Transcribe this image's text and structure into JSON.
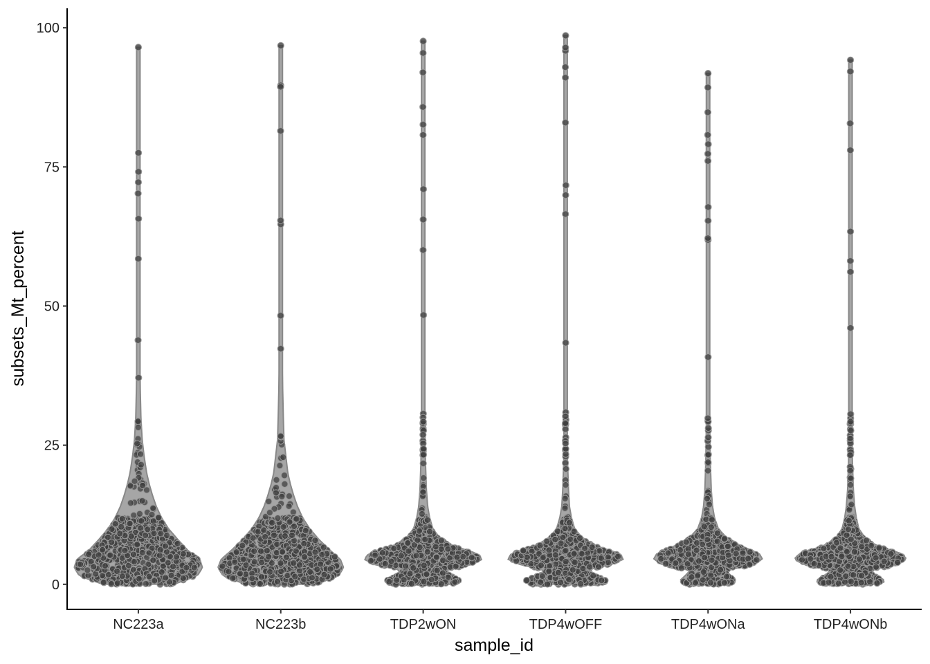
{
  "chart_data": {
    "type": "violin",
    "xlabel": "sample_id",
    "ylabel": "subsets_Mt_percent",
    "ylim": [
      -4.5,
      103.5
    ],
    "yticks": [
      0,
      25,
      50,
      75,
      100
    ],
    "grid": false,
    "legend": "none",
    "point_color": "#404040",
    "violin_fill": "#a6a6a6",
    "violin_outline": "#888888",
    "categories": [
      "NC223a",
      "NC223b",
      "TDP2wON",
      "TDP4wOFF",
      "TDP4wONa",
      "TDP4wONb"
    ],
    "series": [
      {
        "name": "NC223a",
        "max": 96.5,
        "min": 0,
        "profile": [
          [
            0,
            0.55
          ],
          [
            1.5,
            0.92
          ],
          [
            3,
            1.0
          ],
          [
            4.5,
            0.96
          ],
          [
            6,
            0.78
          ],
          [
            8,
            0.62
          ],
          [
            10,
            0.47
          ],
          [
            12,
            0.36
          ],
          [
            14,
            0.28
          ],
          [
            16,
            0.22
          ],
          [
            18,
            0.17
          ],
          [
            20,
            0.13
          ],
          [
            23,
            0.09
          ],
          [
            26,
            0.06
          ],
          [
            30,
            0.04
          ],
          [
            35,
            0.03
          ],
          [
            45,
            0.02
          ],
          [
            60,
            0.015
          ],
          [
            80,
            0.012
          ],
          [
            96.5,
            0.01
          ]
        ]
      },
      {
        "name": "NC223b",
        "max": 96.8,
        "min": 0,
        "profile": [
          [
            0,
            0.55
          ],
          [
            1.5,
            0.9
          ],
          [
            3,
            0.98
          ],
          [
            4.5,
            0.93
          ],
          [
            6,
            0.78
          ],
          [
            8,
            0.6
          ],
          [
            10,
            0.45
          ],
          [
            12,
            0.34
          ],
          [
            14,
            0.26
          ],
          [
            16,
            0.2
          ],
          [
            18,
            0.15
          ],
          [
            20,
            0.11
          ],
          [
            23,
            0.08
          ],
          [
            26,
            0.05
          ],
          [
            30,
            0.04
          ],
          [
            35,
            0.03
          ],
          [
            45,
            0.02
          ],
          [
            60,
            0.015
          ],
          [
            80,
            0.012
          ],
          [
            96.8,
            0.01
          ]
        ]
      },
      {
        "name": "TDP2wON",
        "max": 97.6,
        "min": 0,
        "profile": [
          [
            0,
            0.5
          ],
          [
            0.6,
            0.62
          ],
          [
            1.5,
            0.48
          ],
          [
            2.5,
            0.33
          ],
          [
            3.5,
            0.75
          ],
          [
            4.5,
            0.92
          ],
          [
            5.5,
            0.85
          ],
          [
            7,
            0.45
          ],
          [
            8.5,
            0.25
          ],
          [
            10,
            0.15
          ],
          [
            12,
            0.1
          ],
          [
            14,
            0.07
          ],
          [
            17,
            0.05
          ],
          [
            22,
            0.035
          ],
          [
            30,
            0.025
          ],
          [
            45,
            0.018
          ],
          [
            65,
            0.014
          ],
          [
            97.6,
            0.01
          ]
        ]
      },
      {
        "name": "TDP4wOFF",
        "max": 98.6,
        "min": 0,
        "profile": [
          [
            0,
            0.55
          ],
          [
            0.6,
            0.68
          ],
          [
            1.5,
            0.5
          ],
          [
            2.5,
            0.3
          ],
          [
            3.5,
            0.7
          ],
          [
            4.5,
            0.9
          ],
          [
            5.5,
            0.85
          ],
          [
            7,
            0.45
          ],
          [
            8.5,
            0.25
          ],
          [
            10,
            0.14
          ],
          [
            12,
            0.09
          ],
          [
            14,
            0.06
          ],
          [
            17,
            0.045
          ],
          [
            22,
            0.03
          ],
          [
            30,
            0.022
          ],
          [
            45,
            0.018
          ],
          [
            65,
            0.016
          ],
          [
            98.6,
            0.012
          ]
        ]
      },
      {
        "name": "TDP4wONa",
        "max": 91.8,
        "min": 0,
        "profile": [
          [
            0,
            0.35
          ],
          [
            0.6,
            0.45
          ],
          [
            1.5,
            0.36
          ],
          [
            2.5,
            0.28
          ],
          [
            3.5,
            0.7
          ],
          [
            4.5,
            0.85
          ],
          [
            5.5,
            0.8
          ],
          [
            7,
            0.5
          ],
          [
            8.5,
            0.28
          ],
          [
            10,
            0.16
          ],
          [
            12,
            0.1
          ],
          [
            14,
            0.07
          ],
          [
            17,
            0.05
          ],
          [
            22,
            0.035
          ],
          [
            30,
            0.025
          ],
          [
            45,
            0.018
          ],
          [
            65,
            0.014
          ],
          [
            91.8,
            0.01
          ]
        ]
      },
      {
        "name": "TDP4wONb",
        "max": 94.2,
        "min": 0,
        "profile": [
          [
            0,
            0.45
          ],
          [
            0.6,
            0.55
          ],
          [
            1.5,
            0.42
          ],
          [
            2.5,
            0.3
          ],
          [
            3.5,
            0.72
          ],
          [
            4.5,
            0.88
          ],
          [
            5.5,
            0.8
          ],
          [
            7,
            0.4
          ],
          [
            8.5,
            0.22
          ],
          [
            10,
            0.13
          ],
          [
            12,
            0.09
          ],
          [
            14,
            0.065
          ],
          [
            17,
            0.045
          ],
          [
            22,
            0.03
          ],
          [
            30,
            0.022
          ],
          [
            45,
            0.017
          ],
          [
            65,
            0.014
          ],
          [
            94.2,
            0.01
          ]
        ]
      }
    ]
  }
}
